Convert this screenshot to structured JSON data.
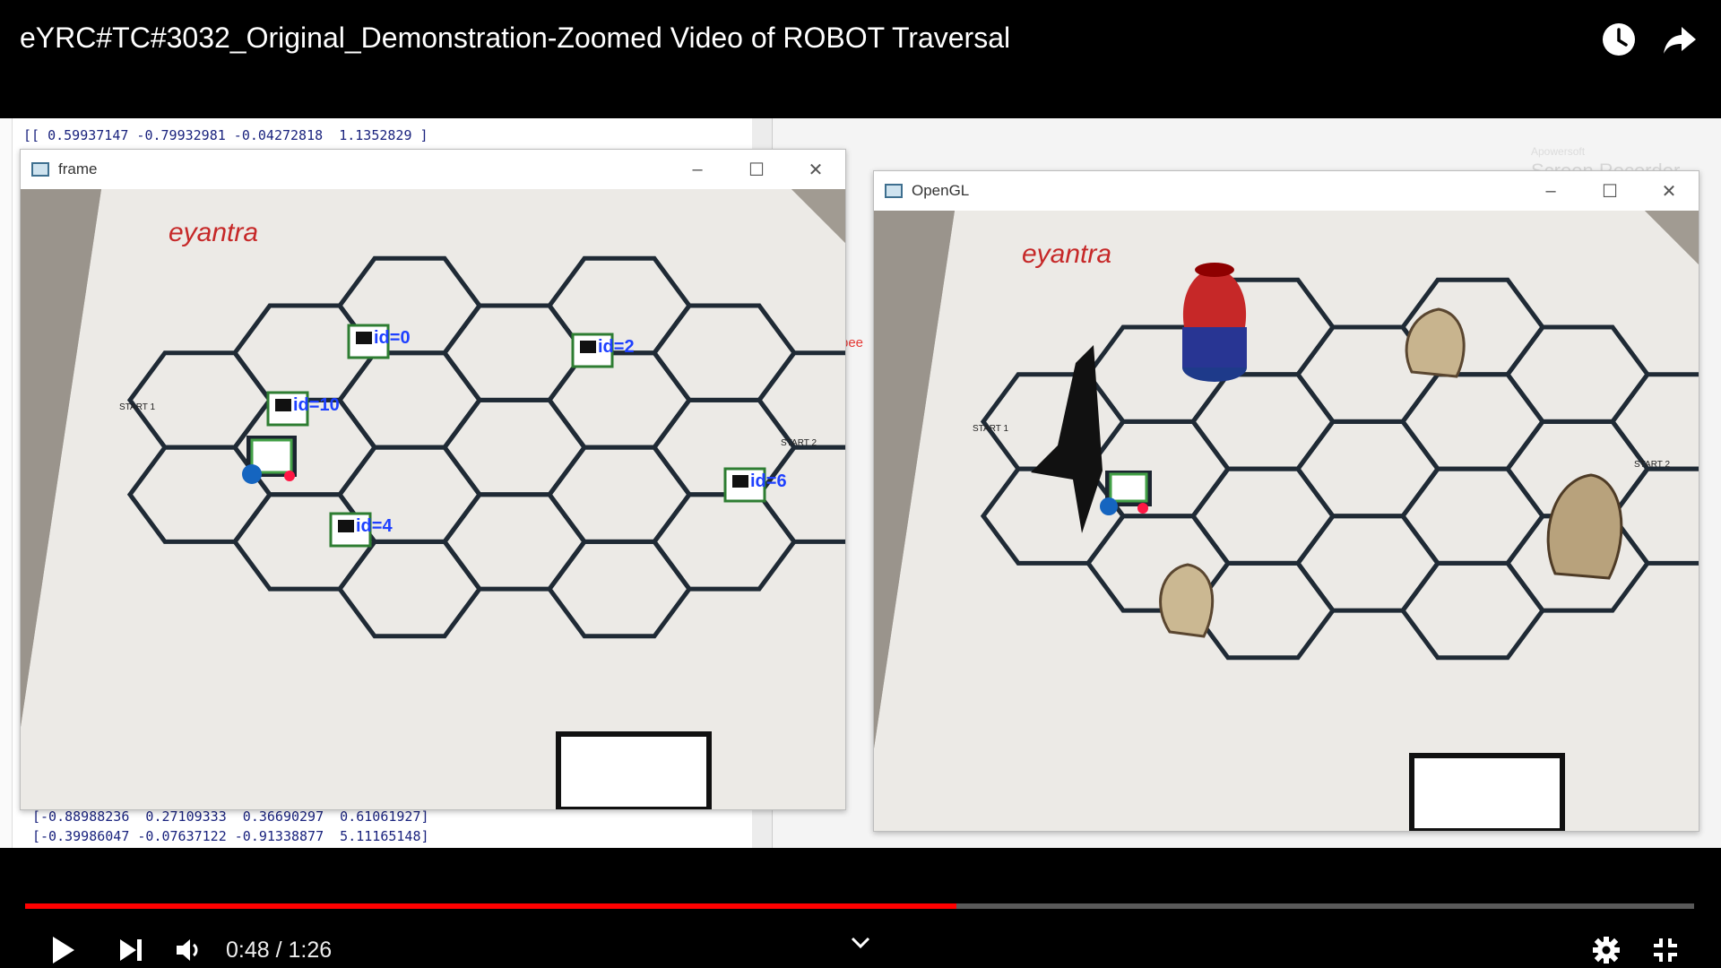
{
  "header": {
    "title": "eYRC#TC#3032_Original_Demonstration-Zoomed Video of ROBOT Traversal",
    "icons": [
      "clock-icon",
      "share-icon"
    ]
  },
  "terminal": {
    "top_lines": [
      "[[ 0.59937147 -0.79932981 -0.04272818  1.1352829 ]"
    ],
    "bottom_lines": [
      "[-0.88988236  0.27109333  0.36690297  0.61061927]",
      "[-0.39986047 -0.07637122 -0.91338877  5.11165148]"
    ],
    "side_note": "pee"
  },
  "watermark": {
    "line1": "Apowersoft",
    "line2": "Screen Recorder"
  },
  "frame_window": {
    "title": "frame",
    "brand": "eyantra",
    "start1": "START 1",
    "start2": "START 2",
    "markers": [
      {
        "label": "id=0"
      },
      {
        "label": "id=2"
      },
      {
        "label": "id=10"
      },
      {
        "label": "id=6"
      },
      {
        "label": "id=4"
      }
    ]
  },
  "opengl_window": {
    "title": "OpenGL",
    "brand": "eyantra",
    "start1": "START 1",
    "start2": "START 2"
  },
  "window_controls": {
    "minimize": "–",
    "maximize": "☐",
    "close": "✕"
  },
  "player": {
    "current_time": "0:48",
    "duration": "1:26",
    "time_display": "0:48 / 1:26",
    "progress": 0.558,
    "accent": "#ff0000",
    "buttons": [
      "play-icon",
      "next-icon",
      "volume-icon",
      "chevron-down-icon",
      "settings-icon",
      "exit-fullscreen-icon"
    ]
  }
}
